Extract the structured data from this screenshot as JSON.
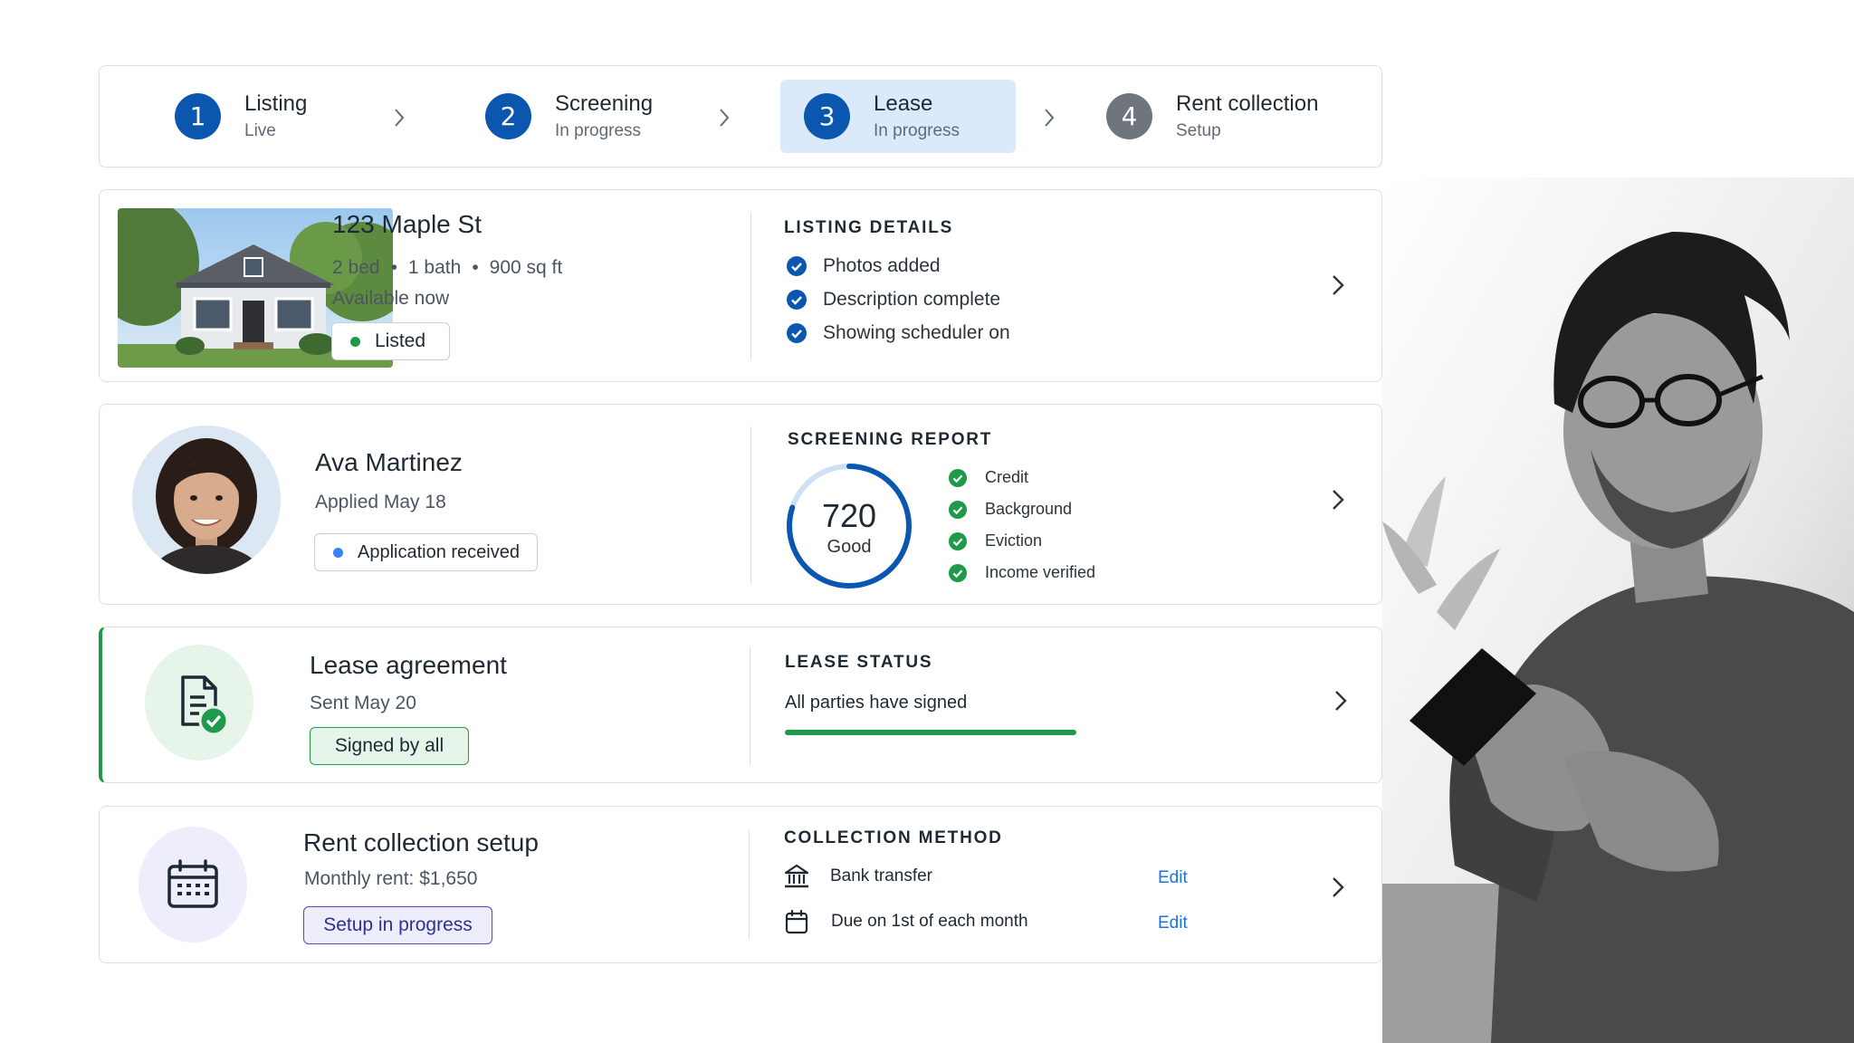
{
  "stepper": {
    "steps": [
      {
        "num": "1",
        "title": "Listing",
        "status": "Live"
      },
      {
        "num": "2",
        "title": "Screening",
        "status": "In progress"
      },
      {
        "num": "3",
        "title": "Lease",
        "status": "In progress"
      },
      {
        "num": "4",
        "title": "Rent collection",
        "status": "Setup"
      }
    ],
    "active_step": 3
  },
  "listing": {
    "address": "123 Maple St",
    "beds": "2 bed",
    "baths": "1 bath",
    "size": "900 sq ft",
    "availability": "Available now",
    "badge": "Listed",
    "details_heading": "LISTING DETAILS",
    "details": [
      "Photos added",
      "Description complete",
      "Showing scheduler on"
    ]
  },
  "applicant": {
    "name": "Ava Martinez",
    "applied": "Applied May 18",
    "badge": "Application received",
    "report_heading": "SCREENING REPORT",
    "score": "720",
    "score_label": "Good",
    "score_fraction": 0.8,
    "checks": [
      "Credit",
      "Background",
      "Eviction",
      "Income verified"
    ]
  },
  "lease": {
    "title": "Lease agreement",
    "sent": "Sent May 20",
    "badge": "Signed by all",
    "status_heading": "LEASE STATUS",
    "status_text": "All parties have signed",
    "progress": 1.0
  },
  "rent": {
    "title": "Rent collection setup",
    "monthly": "Monthly rent: $1,650",
    "badge": "Setup in progress",
    "method_heading": "COLLECTION METHOD",
    "methods": [
      {
        "icon": "bank-icon",
        "label": "Bank transfer",
        "action": "Edit"
      },
      {
        "icon": "calendar-icon",
        "label": "Due on 1st of each month",
        "action": "Edit"
      }
    ]
  },
  "colors": {
    "primary": "#0b57b0",
    "success": "#1f9a4a",
    "link": "#1a73e8",
    "purple": "#4b4fc4"
  }
}
